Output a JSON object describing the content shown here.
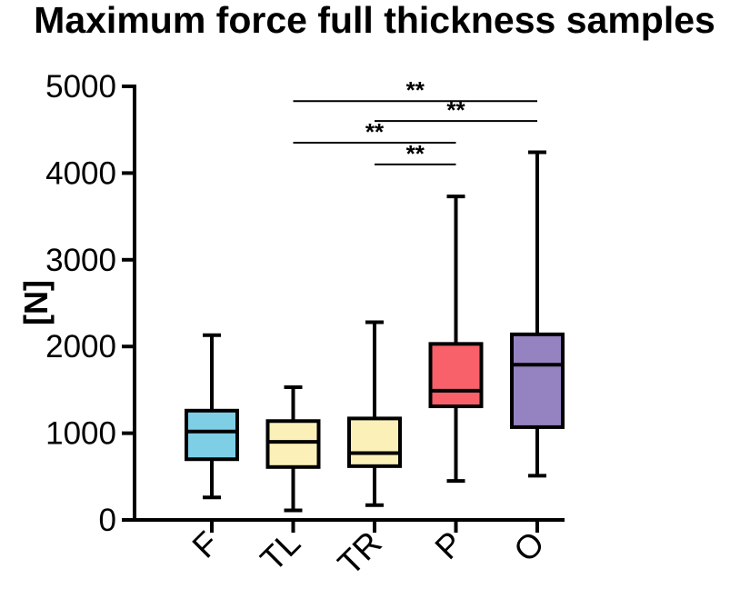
{
  "chart_data": {
    "type": "box",
    "title": "Maximum force full thickness samples",
    "ylabel": "[N]",
    "xlabel": "",
    "ylim": [
      0,
      5000
    ],
    "yticks": [
      0,
      1000,
      2000,
      3000,
      4000,
      5000
    ],
    "grid": false,
    "legend": "none",
    "categories": [
      "F",
      "TL",
      "TR",
      "P",
      "O"
    ],
    "boxes": [
      {
        "category": "F",
        "min": 260,
        "q1": 700,
        "median": 1020,
        "q3": 1260,
        "max": 2130,
        "color": "#7ecfe6"
      },
      {
        "category": "TL",
        "min": 110,
        "q1": 610,
        "median": 900,
        "q3": 1140,
        "max": 1530,
        "color": "#fbf1b8"
      },
      {
        "category": "TR",
        "min": 170,
        "q1": 620,
        "median": 770,
        "q3": 1170,
        "max": 2280,
        "color": "#fbf1b8"
      },
      {
        "category": "P",
        "min": 450,
        "q1": 1310,
        "median": 1490,
        "q3": 2030,
        "max": 3730,
        "color": "#f8606a"
      },
      {
        "category": "O",
        "min": 510,
        "q1": 1070,
        "median": 1790,
        "q3": 2140,
        "max": 4240,
        "color": "#9582c0"
      }
    ],
    "significance": [
      {
        "from": "TL",
        "to": "O",
        "label": "**",
        "y": 4830
      },
      {
        "from": "TR",
        "to": "O",
        "label": "**",
        "y": 4600
      },
      {
        "from": "TL",
        "to": "P",
        "label": "**",
        "y": 4350
      },
      {
        "from": "TR",
        "to": "P",
        "label": "**",
        "y": 4100
      }
    ]
  }
}
